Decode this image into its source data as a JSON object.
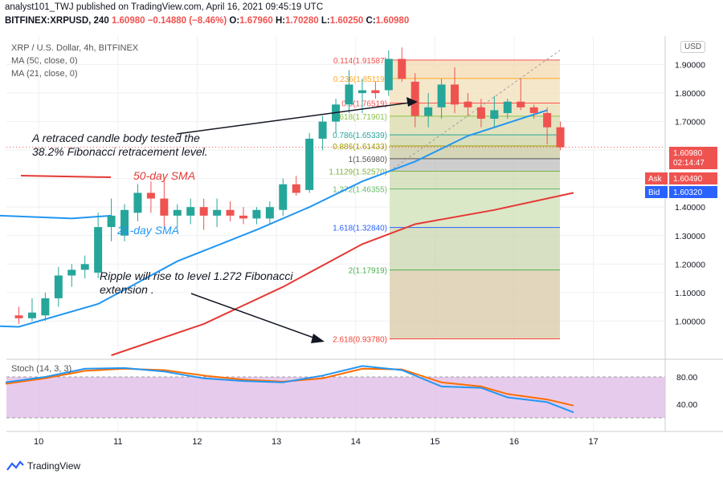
{
  "header": {
    "publish_line": "analyst101_TWJ published on TradingView.com, April 16, 2021 09:45:19 UTC",
    "symbol_line": "BITFINEX:XRPUSD, 240",
    "last": "1.60980",
    "change": "−0.14880 (−8.46%)",
    "o_label": "O:",
    "o": "1.67960",
    "h_label": "H:",
    "h": "1.70280",
    "l_label": "L:",
    "l": "1.60250",
    "c_label": "C:",
    "c": "1.60980"
  },
  "legend": {
    "title": "XRP / U.S. Dollar, 4h, BITFINEX",
    "ma50": "MA (50, close, 0)",
    "ma21": "MA (21, close, 0)"
  },
  "currency_badge": "USD",
  "price_tags": {
    "last_price": "1.60980",
    "countdown": "02:14:47",
    "ask_label": "Ask",
    "ask": "1.60490",
    "bid_label": "Bid",
    "bid": "1.60320"
  },
  "annotations": {
    "note1_line1": "A  retraced candle body tested the",
    "note1_line2": "38.2% Fibonacci retracement level.",
    "sma50_label": "50-day SMA",
    "sma21_label": "21-day SMA",
    "note2_line1": "Ripple will rise to level 1.272 Fibonacci",
    "note2_line2": "extension ."
  },
  "stoch_label": "Stoch (14, 3, 3)",
  "footer_brand": "TradingView",
  "colors": {
    "up": "#26a69a",
    "down": "#ef5350",
    "ma21": "#2196f3",
    "ma50": "#e53935",
    "stoch_k": "#2196f3",
    "stoch_d": "#ff6d00",
    "stoch_band": "#e1bee7"
  },
  "chart_data": {
    "type": "candlestick",
    "ylim": [
      0.88,
      2.0
    ],
    "y_ticks": [
      "1.00000",
      "1.10000",
      "1.20000",
      "1.30000",
      "1.40000",
      "1.50000",
      "1.60000",
      "1.70000",
      "1.80000",
      "1.90000"
    ],
    "x_ticks": [
      {
        "label": "10",
        "t": 1.5
      },
      {
        "label": "11",
        "t": 7.5
      },
      {
        "label": "12",
        "t": 13.5
      },
      {
        "label": "13",
        "t": 19.5
      },
      {
        "label": "14",
        "t": 25.5
      },
      {
        "label": "15",
        "t": 31.5
      },
      {
        "label": "16",
        "t": 37.5
      },
      {
        "label": "17",
        "t": 43.5
      }
    ],
    "candles": [
      {
        "t": 0,
        "o": 1.02,
        "h": 1.05,
        "l": 0.99,
        "c": 1.01
      },
      {
        "t": 1,
        "o": 1.01,
        "h": 1.08,
        "l": 1.0,
        "c": 1.03
      },
      {
        "t": 2,
        "o": 1.02,
        "h": 1.1,
        "l": 1.0,
        "c": 1.08
      },
      {
        "t": 3,
        "o": 1.08,
        "h": 1.19,
        "l": 1.05,
        "c": 1.16
      },
      {
        "t": 4,
        "o": 1.16,
        "h": 1.2,
        "l": 1.12,
        "c": 1.18
      },
      {
        "t": 5,
        "o": 1.18,
        "h": 1.23,
        "l": 1.15,
        "c": 1.2
      },
      {
        "t": 6,
        "o": 1.17,
        "h": 1.38,
        "l": 1.15,
        "c": 1.33
      },
      {
        "t": 7,
        "o": 1.33,
        "h": 1.43,
        "l": 1.28,
        "c": 1.37
      },
      {
        "t": 8,
        "o": 1.3,
        "h": 1.41,
        "l": 1.28,
        "c": 1.39
      },
      {
        "t": 9,
        "o": 1.38,
        "h": 1.48,
        "l": 1.35,
        "c": 1.45
      },
      {
        "t": 10,
        "o": 1.45,
        "h": 1.49,
        "l": 1.38,
        "c": 1.43
      },
      {
        "t": 11,
        "o": 1.43,
        "h": 1.5,
        "l": 1.33,
        "c": 1.37
      },
      {
        "t": 12,
        "o": 1.37,
        "h": 1.41,
        "l": 1.33,
        "c": 1.39
      },
      {
        "t": 13,
        "o": 1.37,
        "h": 1.43,
        "l": 1.34,
        "c": 1.4
      },
      {
        "t": 14,
        "o": 1.4,
        "h": 1.43,
        "l": 1.32,
        "c": 1.37
      },
      {
        "t": 15,
        "o": 1.37,
        "h": 1.43,
        "l": 1.33,
        "c": 1.39
      },
      {
        "t": 16,
        "o": 1.39,
        "h": 1.42,
        "l": 1.35,
        "c": 1.37
      },
      {
        "t": 17,
        "o": 1.37,
        "h": 1.4,
        "l": 1.34,
        "c": 1.36
      },
      {
        "t": 18,
        "o": 1.36,
        "h": 1.4,
        "l": 1.34,
        "c": 1.39
      },
      {
        "t": 19,
        "o": 1.36,
        "h": 1.42,
        "l": 1.34,
        "c": 1.4
      },
      {
        "t": 20,
        "o": 1.39,
        "h": 1.5,
        "l": 1.37,
        "c": 1.48
      },
      {
        "t": 21,
        "o": 1.48,
        "h": 1.51,
        "l": 1.44,
        "c": 1.45
      },
      {
        "t": 22,
        "o": 1.46,
        "h": 1.66,
        "l": 1.45,
        "c": 1.64
      },
      {
        "t": 23,
        "o": 1.64,
        "h": 1.72,
        "l": 1.6,
        "c": 1.7
      },
      {
        "t": 24,
        "o": 1.7,
        "h": 1.78,
        "l": 1.66,
        "c": 1.76
      },
      {
        "t": 25,
        "o": 1.76,
        "h": 1.88,
        "l": 1.73,
        "c": 1.83
      },
      {
        "t": 26,
        "o": 1.8,
        "h": 1.85,
        "l": 1.73,
        "c": 1.81
      },
      {
        "t": 27,
        "o": 1.81,
        "h": 1.84,
        "l": 1.78,
        "c": 1.8
      },
      {
        "t": 28,
        "o": 1.81,
        "h": 1.95,
        "l": 1.79,
        "c": 1.92
      },
      {
        "t": 29,
        "o": 1.92,
        "h": 1.96,
        "l": 1.84,
        "c": 1.85
      },
      {
        "t": 30,
        "o": 1.84,
        "h": 1.87,
        "l": 1.68,
        "c": 1.72
      },
      {
        "t": 31,
        "o": 1.72,
        "h": 1.8,
        "l": 1.68,
        "c": 1.75
      },
      {
        "t": 32,
        "o": 1.75,
        "h": 1.85,
        "l": 1.71,
        "c": 1.83
      },
      {
        "t": 33,
        "o": 1.83,
        "h": 1.89,
        "l": 1.73,
        "c": 1.76
      },
      {
        "t": 34,
        "o": 1.77,
        "h": 1.8,
        "l": 1.72,
        "c": 1.75
      },
      {
        "t": 35,
        "o": 1.75,
        "h": 1.78,
        "l": 1.68,
        "c": 1.71
      },
      {
        "t": 36,
        "o": 1.71,
        "h": 1.79,
        "l": 1.68,
        "c": 1.74
      },
      {
        "t": 37,
        "o": 1.73,
        "h": 1.78,
        "l": 1.71,
        "c": 1.77
      },
      {
        "t": 38,
        "o": 1.77,
        "h": 1.85,
        "l": 1.74,
        "c": 1.75
      },
      {
        "t": 39,
        "o": 1.75,
        "h": 1.76,
        "l": 1.71,
        "c": 1.73
      },
      {
        "t": 40,
        "o": 1.73,
        "h": 1.75,
        "l": 1.62,
        "c": 1.68
      },
      {
        "t": 41,
        "o": 1.68,
        "h": 1.7,
        "l": 1.6,
        "c": 1.61
      }
    ],
    "ma21": [
      {
        "t": -7,
        "v": 1.38
      },
      {
        "t": 4,
        "v": 1.36
      },
      {
        "t": 7,
        "v": 1.37
      }
    ],
    "ma21_b": [
      {
        "t": -7,
        "v": 0.99
      },
      {
        "t": 0,
        "v": 0.98
      },
      {
        "t": 6,
        "v": 1.06
      },
      {
        "t": 12,
        "v": 1.21
      },
      {
        "t": 18,
        "v": 1.32
      },
      {
        "t": 22,
        "v": 1.4
      },
      {
        "t": 26,
        "v": 1.49
      },
      {
        "t": 30,
        "v": 1.56
      },
      {
        "t": 34,
        "v": 1.65
      },
      {
        "t": 38,
        "v": 1.71
      },
      {
        "t": 40,
        "v": 1.74
      }
    ],
    "ma50": [
      {
        "t": -7,
        "v": 1.55
      },
      {
        "t": 0,
        "v": 1.54
      }
    ],
    "ma50_b": [
      {
        "t": 7,
        "v": 0.88
      },
      {
        "t": 14,
        "v": 0.99
      },
      {
        "t": 20,
        "v": 1.12
      },
      {
        "t": 26,
        "v": 1.27
      },
      {
        "t": 30,
        "v": 1.34
      },
      {
        "t": 36,
        "v": 1.39
      },
      {
        "t": 42,
        "v": 1.45
      }
    ],
    "fib_levels": [
      {
        "label": "0.114(1.91587)",
        "v": 1.91587,
        "color": "#ef5350"
      },
      {
        "label": "0.236(1.85119)",
        "v": 1.85119,
        "color": "#ffa726"
      },
      {
        "label": "0.5(1.76519)",
        "v": 1.76519,
        "color": "#ff5252"
      },
      {
        "label": "0.618(1.71901)",
        "v": 1.71901,
        "color": "#8bc34a"
      },
      {
        "label": "0.786(1.65339)",
        "v": 1.65339,
        "color": "#26a69a"
      },
      {
        "label": "0.886(1.61433)",
        "v": 1.61433,
        "color": "#9e9e00"
      },
      {
        "label": "1(1.56980)",
        "v": 1.5698,
        "color": "#555555"
      },
      {
        "label": "1.1129(1.52570)",
        "v": 1.5257,
        "color": "#7cb342"
      },
      {
        "label": "1.272(1.46355)",
        "v": 1.46355,
        "color": "#66bb6a"
      },
      {
        "label": "1.618(1.32840)",
        "v": 1.3284,
        "color": "#2962ff"
      },
      {
        "label": "2(1.17919)",
        "v": 1.17919,
        "color": "#4caf50"
      },
      {
        "label": "2.618(0.93780)",
        "v": 0.9378,
        "color": "#f44336"
      }
    ],
    "stoch": {
      "ylim": [
        0,
        100
      ],
      "ticks": [
        "80.00",
        "40.00"
      ],
      "k": [
        {
          "t": -1,
          "v": 72
        },
        {
          "t": 2,
          "v": 80
        },
        {
          "t": 5,
          "v": 92
        },
        {
          "t": 8,
          "v": 93
        },
        {
          "t": 11,
          "v": 88
        },
        {
          "t": 14,
          "v": 78
        },
        {
          "t": 17,
          "v": 74
        },
        {
          "t": 20,
          "v": 72
        },
        {
          "t": 23,
          "v": 82
        },
        {
          "t": 26,
          "v": 96
        },
        {
          "t": 29,
          "v": 90
        },
        {
          "t": 32,
          "v": 66
        },
        {
          "t": 35,
          "v": 64
        },
        {
          "t": 37,
          "v": 50
        },
        {
          "t": 40,
          "v": 43
        },
        {
          "t": 42,
          "v": 28
        }
      ],
      "d": [
        {
          "t": -1,
          "v": 70
        },
        {
          "t": 2,
          "v": 78
        },
        {
          "t": 5,
          "v": 89
        },
        {
          "t": 8,
          "v": 92
        },
        {
          "t": 11,
          "v": 90
        },
        {
          "t": 14,
          "v": 82
        },
        {
          "t": 17,
          "v": 76
        },
        {
          "t": 20,
          "v": 73
        },
        {
          "t": 23,
          "v": 78
        },
        {
          "t": 26,
          "v": 92
        },
        {
          "t": 29,
          "v": 91
        },
        {
          "t": 32,
          "v": 72
        },
        {
          "t": 35,
          "v": 66
        },
        {
          "t": 37,
          "v": 55
        },
        {
          "t": 40,
          "v": 47
        },
        {
          "t": 42,
          "v": 38
        }
      ]
    }
  }
}
